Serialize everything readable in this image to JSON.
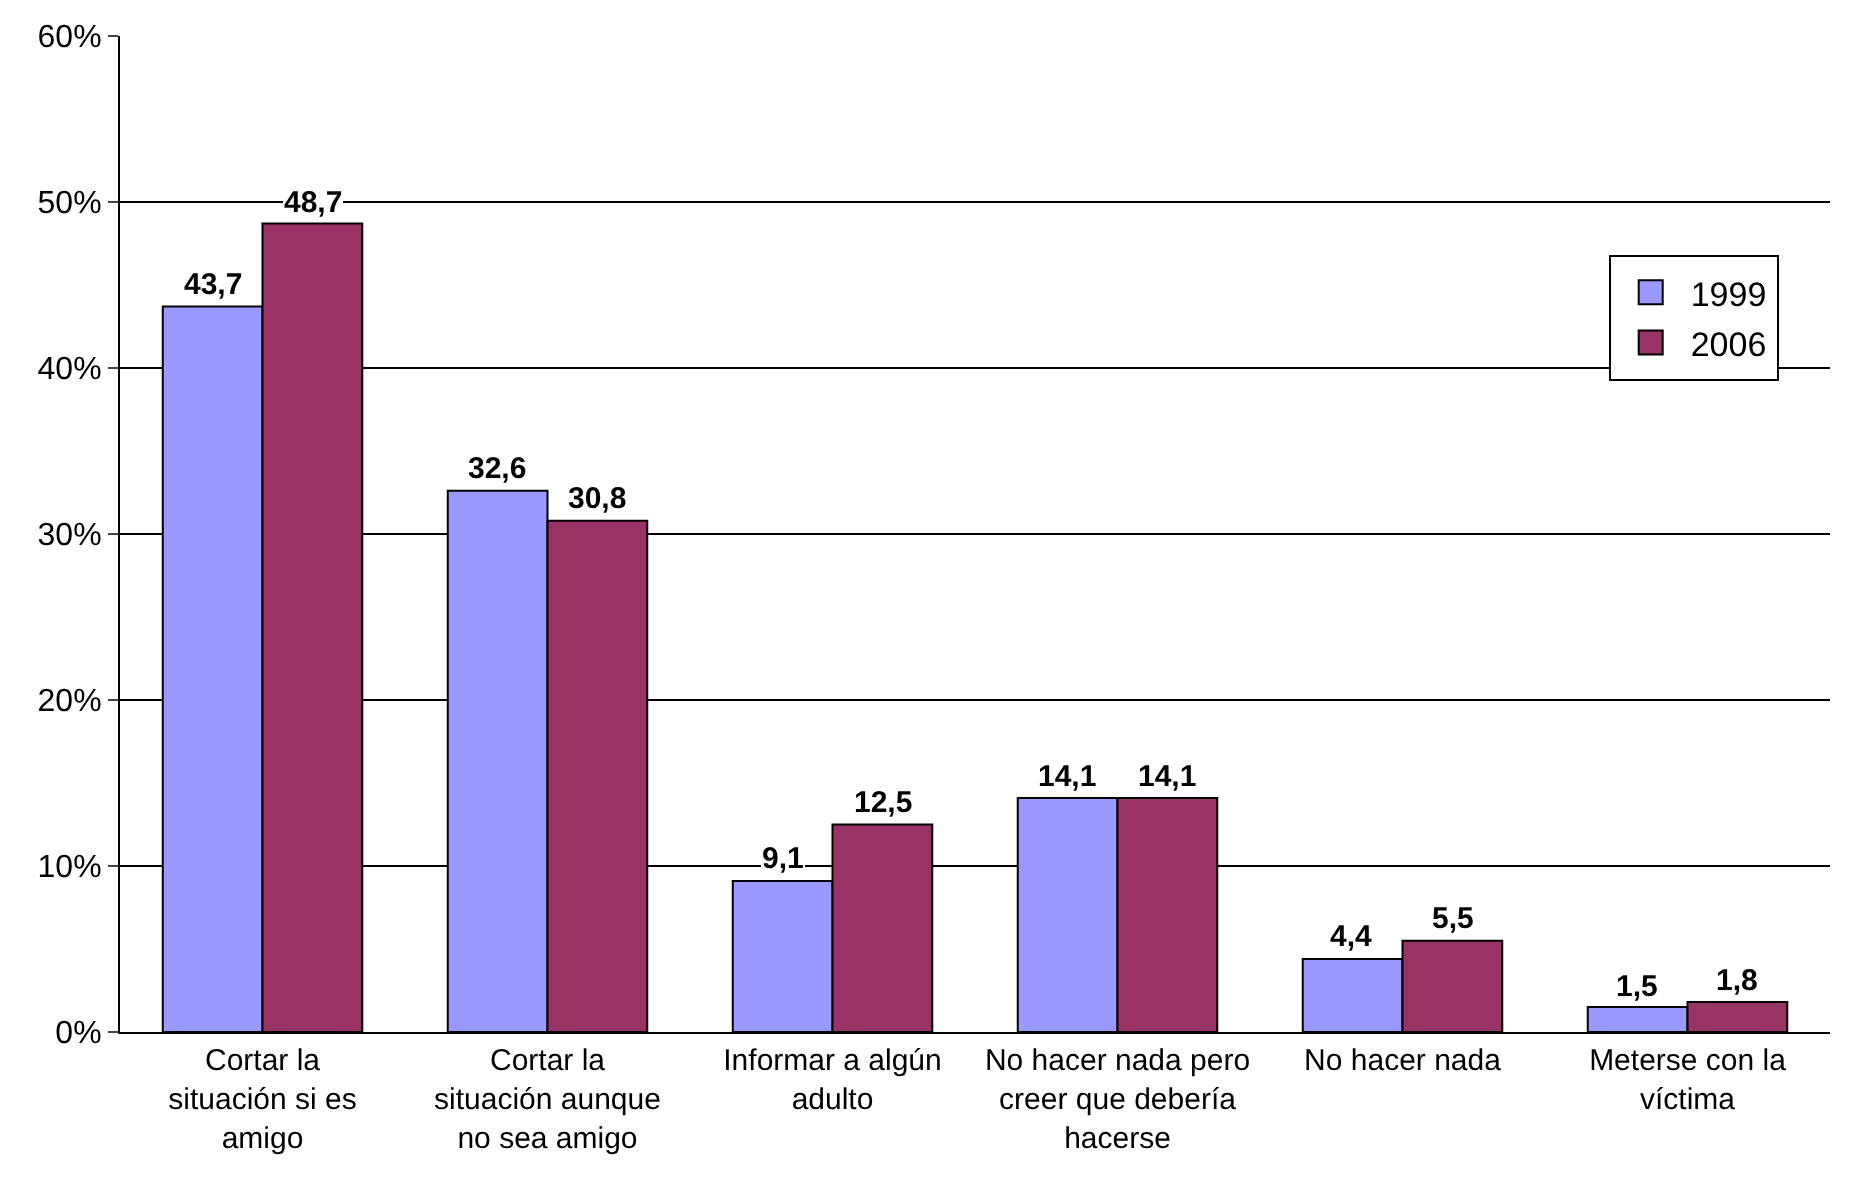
{
  "chart_data": {
    "type": "bar",
    "categories": [
      "Cortar la situación si es amigo",
      "Cortar la situación aunque no sea amigo",
      "Informar a algún adulto",
      "No hacer nada pero creer que debería hacerse",
      "No hacer nada",
      "Meterse con la víctima"
    ],
    "series": [
      {
        "name": "1999",
        "color": "#9999ff",
        "values": [
          43.7,
          32.6,
          9.1,
          14.1,
          4.4,
          1.5
        ],
        "value_labels": [
          "43,7",
          "32,6",
          "9,1",
          "14,1",
          "4,4",
          "1,5"
        ]
      },
      {
        "name": "2006",
        "color": "#993366",
        "values": [
          48.7,
          30.8,
          12.5,
          14.1,
          5.5,
          1.8
        ],
        "value_labels": [
          "48,7",
          "30,8",
          "12,5",
          "14,1",
          "5,5",
          "1,8"
        ]
      }
    ],
    "ylim": [
      0,
      60
    ],
    "yticks": [
      {
        "value": 0,
        "label": "0%"
      },
      {
        "value": 10,
        "label": "10%"
      },
      {
        "value": 20,
        "label": "20%"
      },
      {
        "value": 30,
        "label": "30%"
      },
      {
        "value": 40,
        "label": "40%"
      },
      {
        "value": 50,
        "label": "50%"
      },
      {
        "value": 60,
        "label": "60%"
      }
    ],
    "grid": "y",
    "legend": "top right"
  }
}
